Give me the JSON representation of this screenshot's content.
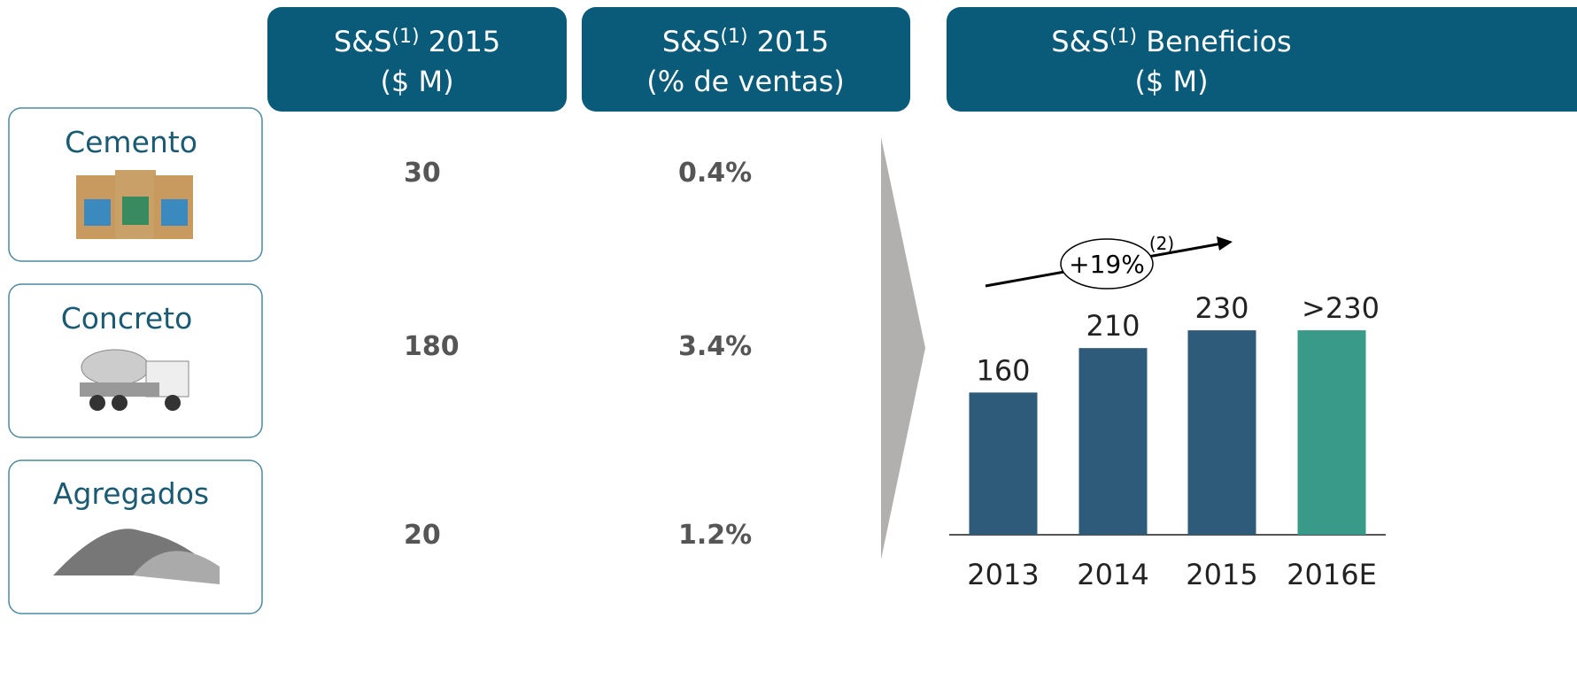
{
  "headers": [
    {
      "prefix": "S&S",
      "note": "(1)",
      "rest": " 2015",
      "line2": "($ M)"
    },
    {
      "prefix": "S&S",
      "note": "(1)",
      "rest": " 2015",
      "line2": "(% de ventas)"
    },
    {
      "prefix": "S&S",
      "note": "(1)",
      "rest": " Beneficios",
      "line2": "($ M)"
    }
  ],
  "rows": [
    {
      "label": "Cemento",
      "amount": "30",
      "share": "0.4%"
    },
    {
      "label": "Concreto",
      "amount": "180",
      "share": "3.4%"
    },
    {
      "label": "Agregados",
      "amount": "20",
      "share": "1.2%"
    }
  ],
  "chart_data": {
    "type": "bar",
    "categories": [
      "2013",
      "2014",
      "2015",
      "2016E"
    ],
    "values": [
      160,
      210,
      230,
      230
    ],
    "value_labels": [
      "160",
      "210",
      "230",
      ">230"
    ],
    "colors": [
      "#2e5b7a",
      "#2e5b7a",
      "#2e5b7a",
      "#3a9a8a"
    ],
    "ylim": [
      0,
      250
    ],
    "annotation": "+19%",
    "annotation_note": "(2)"
  }
}
